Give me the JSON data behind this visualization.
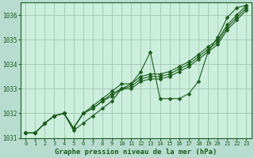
{
  "title": "Graphe pression niveau de la mer (hPa)",
  "bg_color": "#b8ddd0",
  "plot_bg_color": "#cceedd",
  "line_color": "#1a5c1a",
  "markersize": 2.5,
  "linewidth": 0.8,
  "x": [
    0,
    1,
    2,
    3,
    4,
    5,
    6,
    7,
    8,
    9,
    10,
    11,
    12,
    13,
    14,
    15,
    16,
    17,
    18,
    19,
    20,
    21,
    22,
    23
  ],
  "series1": [
    1031.2,
    1031.2,
    1031.6,
    1031.9,
    1032.0,
    1031.4,
    1032.0,
    1032.3,
    1032.6,
    1032.9,
    1033.2,
    1033.2,
    1033.5,
    1033.6,
    1033.6,
    1033.7,
    1033.9,
    1034.1,
    1034.4,
    1034.7,
    1035.0,
    1035.6,
    1036.0,
    1036.4
  ],
  "series2": [
    1031.2,
    1031.2,
    1031.6,
    1031.9,
    1032.0,
    1031.4,
    1032.0,
    1032.2,
    1032.5,
    1032.8,
    1033.0,
    1033.1,
    1033.4,
    1033.5,
    1033.5,
    1033.6,
    1033.8,
    1034.0,
    1034.3,
    1034.6,
    1034.9,
    1035.5,
    1035.9,
    1036.3
  ],
  "series3": [
    1031.2,
    1031.2,
    1031.6,
    1031.9,
    1032.0,
    1031.4,
    1032.0,
    1032.2,
    1032.5,
    1032.7,
    1033.0,
    1033.0,
    1033.3,
    1033.4,
    1033.4,
    1033.5,
    1033.7,
    1033.9,
    1034.2,
    1034.5,
    1034.8,
    1035.4,
    1035.8,
    1036.2
  ],
  "series4": [
    1031.2,
    1031.2,
    1031.6,
    1031.9,
    1032.0,
    1031.3,
    1031.6,
    1031.9,
    1032.2,
    1032.5,
    1033.0,
    1033.2,
    1033.7,
    1034.5,
    1032.6,
    1032.6,
    1032.6,
    1032.8,
    1033.3,
    1034.5,
    1035.1,
    1035.9,
    1036.3,
    1036.4
  ],
  "ylim": [
    1031.0,
    1036.5
  ],
  "yticks": [
    1031,
    1032,
    1033,
    1034,
    1035,
    1036
  ],
  "xticks": [
    0,
    1,
    2,
    3,
    4,
    5,
    6,
    7,
    8,
    9,
    10,
    11,
    12,
    13,
    14,
    15,
    16,
    17,
    18,
    19,
    20,
    21,
    22,
    23
  ],
  "grid_color": "#99bbaa",
  "grid_linewidth": 0.5,
  "tick_fontsize": 5.0,
  "xlabel_fontsize": 6.5
}
